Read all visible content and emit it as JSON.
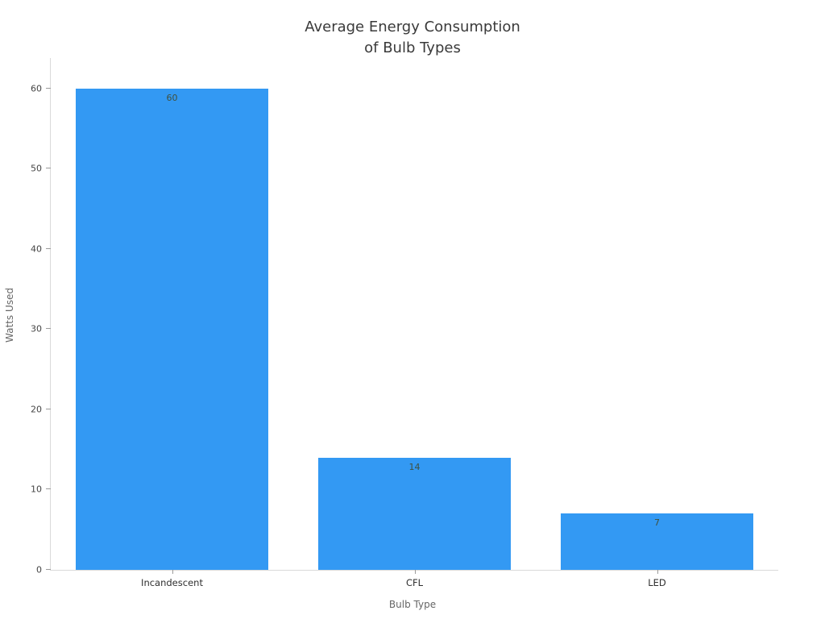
{
  "chart_data": {
    "type": "bar",
    "title": "Average Energy Consumption\nof Bulb Types",
    "categories": [
      "Incandescent",
      "CFL",
      "LED"
    ],
    "values": [
      60,
      14,
      7
    ],
    "xlabel": "Bulb Type",
    "ylabel": "Watts Used",
    "ylim": [
      0,
      63.8
    ],
    "yticks": [
      0,
      10,
      20,
      30,
      40,
      50,
      60
    ],
    "bar_color": "#3399f3",
    "bar_width_fraction": 0.795,
    "grid": false,
    "legend": false,
    "value_labels_shown": true
  }
}
